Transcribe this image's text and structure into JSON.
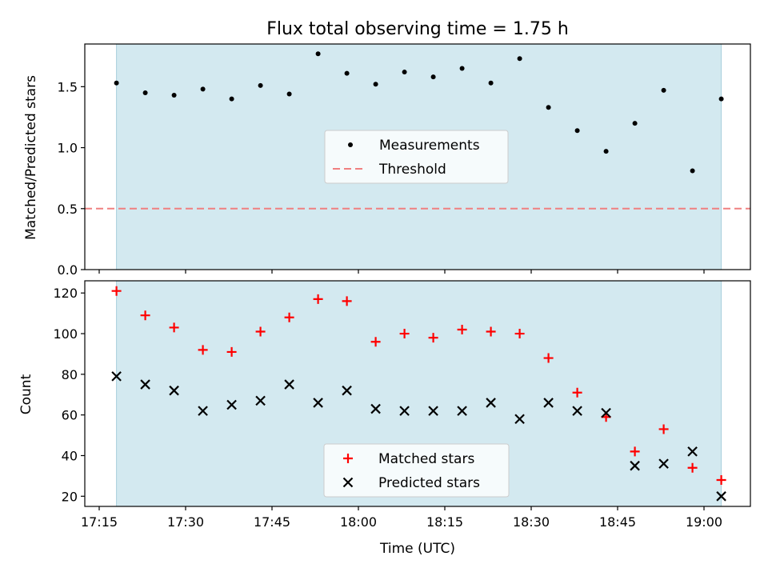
{
  "figure": {
    "title": "Flux total observing time = 1.75 h",
    "xlabel": "Time (UTC)"
  },
  "colors": {
    "shade": "#d3e9f0",
    "shade_edge": "#a9cfdc",
    "threshold": "#f08080",
    "matched": "#ff0000",
    "predicted": "#000000",
    "measure": "#000000"
  },
  "chart_data": [
    {
      "type": "scatter",
      "ylabel": "Matched/Predicted stars",
      "ylim": [
        0,
        1.85
      ],
      "yticks": [
        0.0,
        0.5,
        1.0,
        1.5
      ],
      "ytick_labels": [
        "0.0",
        "0.5",
        "1.0",
        "1.5"
      ],
      "xticks": [
        "17:15",
        "17:30",
        "17:45",
        "18:00",
        "18:15",
        "18:30",
        "18:45",
        "19:00"
      ],
      "shaded_span": [
        "17:18",
        "19:03"
      ],
      "threshold": 0.5,
      "legend": [
        "Measurements",
        "Threshold"
      ],
      "legend_position": "center",
      "series": [
        {
          "name": "Measurements",
          "x": [
            "17:18",
            "17:23",
            "17:28",
            "17:33",
            "17:38",
            "17:43",
            "17:48",
            "17:53",
            "17:58",
            "18:03",
            "18:08",
            "18:13",
            "18:18",
            "18:23",
            "18:28",
            "18:33",
            "18:38",
            "18:43",
            "18:48",
            "18:53",
            "18:58",
            "19:03"
          ],
          "y": [
            1.53,
            1.45,
            1.43,
            1.48,
            1.4,
            1.51,
            1.44,
            1.77,
            1.61,
            1.52,
            1.62,
            1.58,
            1.65,
            1.53,
            1.73,
            1.33,
            1.14,
            0.97,
            1.2,
            1.47,
            0.81,
            1.4
          ]
        }
      ]
    },
    {
      "type": "scatter",
      "ylabel": "Count",
      "ylim": [
        15,
        126
      ],
      "yticks": [
        20,
        40,
        60,
        80,
        100,
        120
      ],
      "ytick_labels": [
        "20",
        "40",
        "60",
        "80",
        "100",
        "120"
      ],
      "xticks": [
        "17:15",
        "17:30",
        "17:45",
        "18:00",
        "18:15",
        "18:30",
        "18:45",
        "19:00"
      ],
      "xlabel": "Time (UTC)",
      "shaded_span": [
        "17:18",
        "19:03"
      ],
      "legend": [
        "Matched stars",
        "Predicted stars"
      ],
      "legend_position": "lower center",
      "series": [
        {
          "name": "Matched stars",
          "x": [
            "17:18",
            "17:23",
            "17:28",
            "17:33",
            "17:38",
            "17:43",
            "17:48",
            "17:53",
            "17:58",
            "18:03",
            "18:08",
            "18:13",
            "18:18",
            "18:23",
            "18:28",
            "18:33",
            "18:38",
            "18:43",
            "18:48",
            "18:53",
            "18:58",
            "19:03"
          ],
          "y": [
            121,
            109,
            103,
            92,
            91,
            101,
            108,
            117,
            116,
            96,
            100,
            98,
            102,
            101,
            100,
            88,
            71,
            59,
            42,
            53,
            34,
            28
          ]
        },
        {
          "name": "Predicted stars",
          "x": [
            "17:18",
            "17:23",
            "17:28",
            "17:33",
            "17:38",
            "17:43",
            "17:48",
            "17:53",
            "17:58",
            "18:03",
            "18:08",
            "18:13",
            "18:18",
            "18:23",
            "18:28",
            "18:33",
            "18:38",
            "18:43",
            "18:48",
            "18:53",
            "18:58",
            "19:03"
          ],
          "y": [
            79,
            75,
            72,
            62,
            65,
            67,
            75,
            66,
            72,
            63,
            62,
            62,
            62,
            66,
            58,
            66,
            62,
            61,
            35,
            36,
            42,
            20
          ]
        }
      ]
    }
  ]
}
